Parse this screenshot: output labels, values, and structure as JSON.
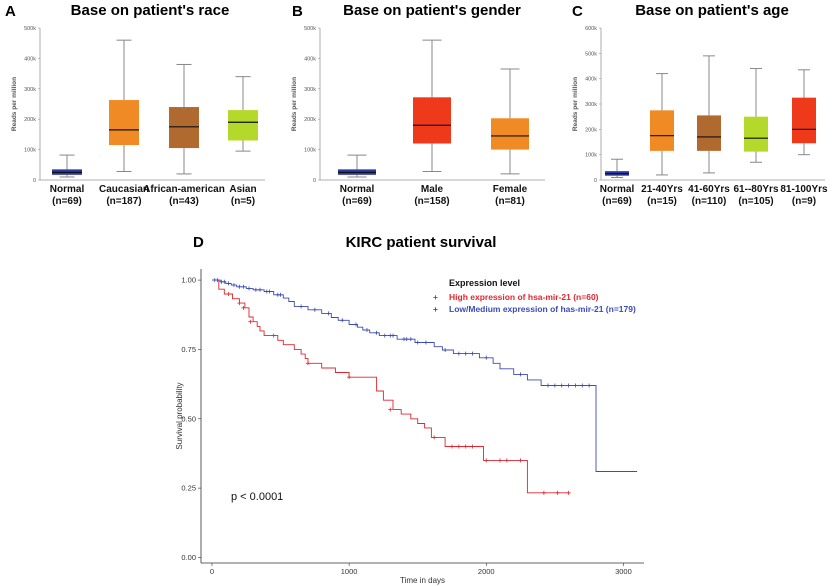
{
  "chart_data": [
    {
      "id": "A",
      "type": "boxplot",
      "letter": "A",
      "title": "Base on patient's race",
      "ylabel": "Reads per million",
      "ylim": [
        0,
        500000
      ],
      "yticks": [
        "0",
        "100k",
        "200k",
        "300k",
        "400k",
        "500k"
      ],
      "boxes": [
        {
          "label": "Normal",
          "n": "(n=69)",
          "color": "#2d3aa6",
          "min": 10000,
          "q1": 17000,
          "median": 25000,
          "q3": 35000,
          "max": 82000
        },
        {
          "label": "Caucasian",
          "n": "(n=187)",
          "color": "#f08a24",
          "min": 28000,
          "q1": 115000,
          "median": 165000,
          "q3": 263000,
          "max": 460000
        },
        {
          "label": "African-american",
          "n": "(n=43)",
          "color": "#b06a30",
          "min": 20000,
          "q1": 105000,
          "median": 175000,
          "q3": 240000,
          "max": 380000
        },
        {
          "label": "Asian",
          "n": "(n=5)",
          "color": "#b5d92b",
          "min": 95000,
          "q1": 130000,
          "median": 190000,
          "q3": 230000,
          "max": 340000
        }
      ]
    },
    {
      "id": "B",
      "type": "boxplot",
      "letter": "B",
      "title": "Base on patient's gender",
      "ylabel": "Reads per million",
      "ylim": [
        0,
        500000
      ],
      "yticks": [
        "0",
        "100k",
        "200k",
        "300k",
        "400k",
        "500k"
      ],
      "boxes": [
        {
          "label": "Normal",
          "n": "(n=69)",
          "color": "#2d3aa6",
          "min": 10000,
          "q1": 17000,
          "median": 25000,
          "q3": 35000,
          "max": 82000
        },
        {
          "label": "Male",
          "n": "(n=158)",
          "color": "#ee3a1a",
          "min": 28000,
          "q1": 120000,
          "median": 180000,
          "q3": 272000,
          "max": 460000
        },
        {
          "label": "Female",
          "n": "(n=81)",
          "color": "#f08a24",
          "min": 20000,
          "q1": 100000,
          "median": 145000,
          "q3": 203000,
          "max": 365000
        }
      ]
    },
    {
      "id": "C",
      "type": "boxplot",
      "letter": "C",
      "title": "Base on patient's age",
      "ylabel": "Reads per million",
      "ylim": [
        0,
        600000
      ],
      "yticks": [
        "0",
        "100k",
        "200k",
        "300k",
        "400k",
        "500k",
        "600k"
      ],
      "boxes": [
        {
          "label": "Normal",
          "n": "(n=69)",
          "color": "#2d3aa6",
          "min": 10000,
          "q1": 17000,
          "median": 25000,
          "q3": 35000,
          "max": 82000
        },
        {
          "label": "21-40Yrs",
          "n": "(n=15)",
          "color": "#f08a24",
          "min": 20000,
          "q1": 115000,
          "median": 175000,
          "q3": 275000,
          "max": 420000
        },
        {
          "label": "41-60Yrs",
          "n": "(n=110)",
          "color": "#b06a30",
          "min": 28000,
          "q1": 115000,
          "median": 170000,
          "q3": 255000,
          "max": 490000
        },
        {
          "label": "61--80Yrs",
          "n": "(n=105)",
          "color": "#b5d92b",
          "min": 70000,
          "q1": 112000,
          "median": 165000,
          "q3": 250000,
          "max": 440000
        },
        {
          "label": "81-100Yrs",
          "n": "(n=9)",
          "color": "#ee3a1a",
          "min": 100000,
          "q1": 145000,
          "median": 200000,
          "q3": 325000,
          "max": 435000
        }
      ]
    },
    {
      "id": "D",
      "type": "line",
      "subtype": "kaplan-meier",
      "letter": "D",
      "title": "KIRC patient survival",
      "xlabel": "Time in days",
      "ylabel": "Survival probability",
      "xlim": [
        -80,
        3150
      ],
      "ylim": [
        -0.02,
        1.04
      ],
      "xticks": [
        0,
        1000,
        2000,
        3000
      ],
      "yticks": [
        0.0,
        0.25,
        0.5,
        0.75,
        1.0
      ],
      "ytick_labels": [
        "0.00",
        "0.25",
        "0.50",
        "0.75",
        "1.00"
      ],
      "legend_title": "Expression level",
      "pvalue": "p < 0.0001",
      "series": [
        {
          "name": "High expression of hsa-mir-21 (n=60)",
          "color": "#e0262e",
          "steps": [
            [
              0,
              1.0
            ],
            [
              50,
              0.967
            ],
            [
              90,
              0.95
            ],
            [
              150,
              0.933
            ],
            [
              200,
              0.917
            ],
            [
              240,
              0.9
            ],
            [
              270,
              0.867
            ],
            [
              300,
              0.85
            ],
            [
              330,
              0.833
            ],
            [
              350,
              0.817
            ],
            [
              380,
              0.8
            ],
            [
              480,
              0.783
            ],
            [
              520,
              0.767
            ],
            [
              600,
              0.75
            ],
            [
              650,
              0.733
            ],
            [
              680,
              0.717
            ],
            [
              700,
              0.7
            ],
            [
              800,
              0.683
            ],
            [
              900,
              0.667
            ],
            [
              1000,
              0.65
            ],
            [
              1200,
              0.6
            ],
            [
              1250,
              0.567
            ],
            [
              1320,
              0.533
            ],
            [
              1380,
              0.517
            ],
            [
              1450,
              0.5
            ],
            [
              1500,
              0.483
            ],
            [
              1550,
              0.467
            ],
            [
              1600,
              0.433
            ],
            [
              1700,
              0.4
            ],
            [
              1980,
              0.35
            ],
            [
              2300,
              0.3
            ],
            [
              2300,
              0.233
            ],
            [
              2600,
              0.233
            ]
          ],
          "censors": [
            [
              120,
              0.95
            ],
            [
              200,
              0.917
            ],
            [
              230,
              0.9
            ],
            [
              280,
              0.85
            ],
            [
              450,
              0.8
            ],
            [
              700,
              0.7
            ],
            [
              1000,
              0.65
            ],
            [
              1300,
              0.533
            ],
            [
              1620,
              0.433
            ],
            [
              1750,
              0.4
            ],
            [
              1800,
              0.4
            ],
            [
              1850,
              0.4
            ],
            [
              1900,
              0.4
            ],
            [
              2000,
              0.35
            ],
            [
              2100,
              0.35
            ],
            [
              2150,
              0.35
            ],
            [
              2250,
              0.35
            ],
            [
              2420,
              0.233
            ],
            [
              2520,
              0.233
            ],
            [
              2600,
              0.233
            ]
          ]
        },
        {
          "name": "Low/Medium expression of has-mir-21 (n=179)",
          "color": "#3b4bb8",
          "steps": [
            [
              0,
              1.0
            ],
            [
              60,
              0.994
            ],
            [
              100,
              0.988
            ],
            [
              140,
              0.982
            ],
            [
              180,
              0.976
            ],
            [
              250,
              0.97
            ],
            [
              300,
              0.965
            ],
            [
              380,
              0.959
            ],
            [
              450,
              0.947
            ],
            [
              520,
              0.935
            ],
            [
              560,
              0.923
            ],
            [
              600,
              0.905
            ],
            [
              700,
              0.893
            ],
            [
              800,
              0.88
            ],
            [
              870,
              0.865
            ],
            [
              920,
              0.855
            ],
            [
              1000,
              0.84
            ],
            [
              1060,
              0.83
            ],
            [
              1100,
              0.82
            ],
            [
              1150,
              0.81
            ],
            [
              1220,
              0.8
            ],
            [
              1350,
              0.787
            ],
            [
              1480,
              0.775
            ],
            [
              1620,
              0.76
            ],
            [
              1680,
              0.748
            ],
            [
              1760,
              0.735
            ],
            [
              1950,
              0.72
            ],
            [
              2050,
              0.7
            ],
            [
              2100,
              0.68
            ],
            [
              2200,
              0.66
            ],
            [
              2300,
              0.64
            ],
            [
              2400,
              0.62
            ],
            [
              2800,
              0.62
            ],
            [
              2800,
              0.31
            ],
            [
              3100,
              0.31
            ]
          ],
          "censors": [
            [
              20,
              1.0
            ],
            [
              40,
              1.0
            ],
            [
              70,
              0.994
            ],
            [
              90,
              0.994
            ],
            [
              120,
              0.988
            ],
            [
              160,
              0.982
            ],
            [
              200,
              0.976
            ],
            [
              230,
              0.976
            ],
            [
              270,
              0.97
            ],
            [
              320,
              0.965
            ],
            [
              350,
              0.965
            ],
            [
              400,
              0.959
            ],
            [
              420,
              0.959
            ],
            [
              480,
              0.947
            ],
            [
              500,
              0.947
            ],
            [
              650,
              0.905
            ],
            [
              750,
              0.893
            ],
            [
              850,
              0.88
            ],
            [
              950,
              0.855
            ],
            [
              1050,
              0.84
            ],
            [
              1130,
              0.82
            ],
            [
              1200,
              0.81
            ],
            [
              1260,
              0.8
            ],
            [
              1300,
              0.8
            ],
            [
              1320,
              0.8
            ],
            [
              1400,
              0.787
            ],
            [
              1420,
              0.787
            ],
            [
              1450,
              0.787
            ],
            [
              1500,
              0.775
            ],
            [
              1560,
              0.775
            ],
            [
              1700,
              0.748
            ],
            [
              1800,
              0.735
            ],
            [
              1850,
              0.735
            ],
            [
              1900,
              0.735
            ],
            [
              2000,
              0.72
            ],
            [
              2250,
              0.66
            ],
            [
              2450,
              0.62
            ],
            [
              2500,
              0.62
            ],
            [
              2550,
              0.62
            ],
            [
              2600,
              0.62
            ],
            [
              2650,
              0.62
            ],
            [
              2700,
              0.62
            ],
            [
              2750,
              0.62
            ]
          ]
        }
      ]
    }
  ]
}
